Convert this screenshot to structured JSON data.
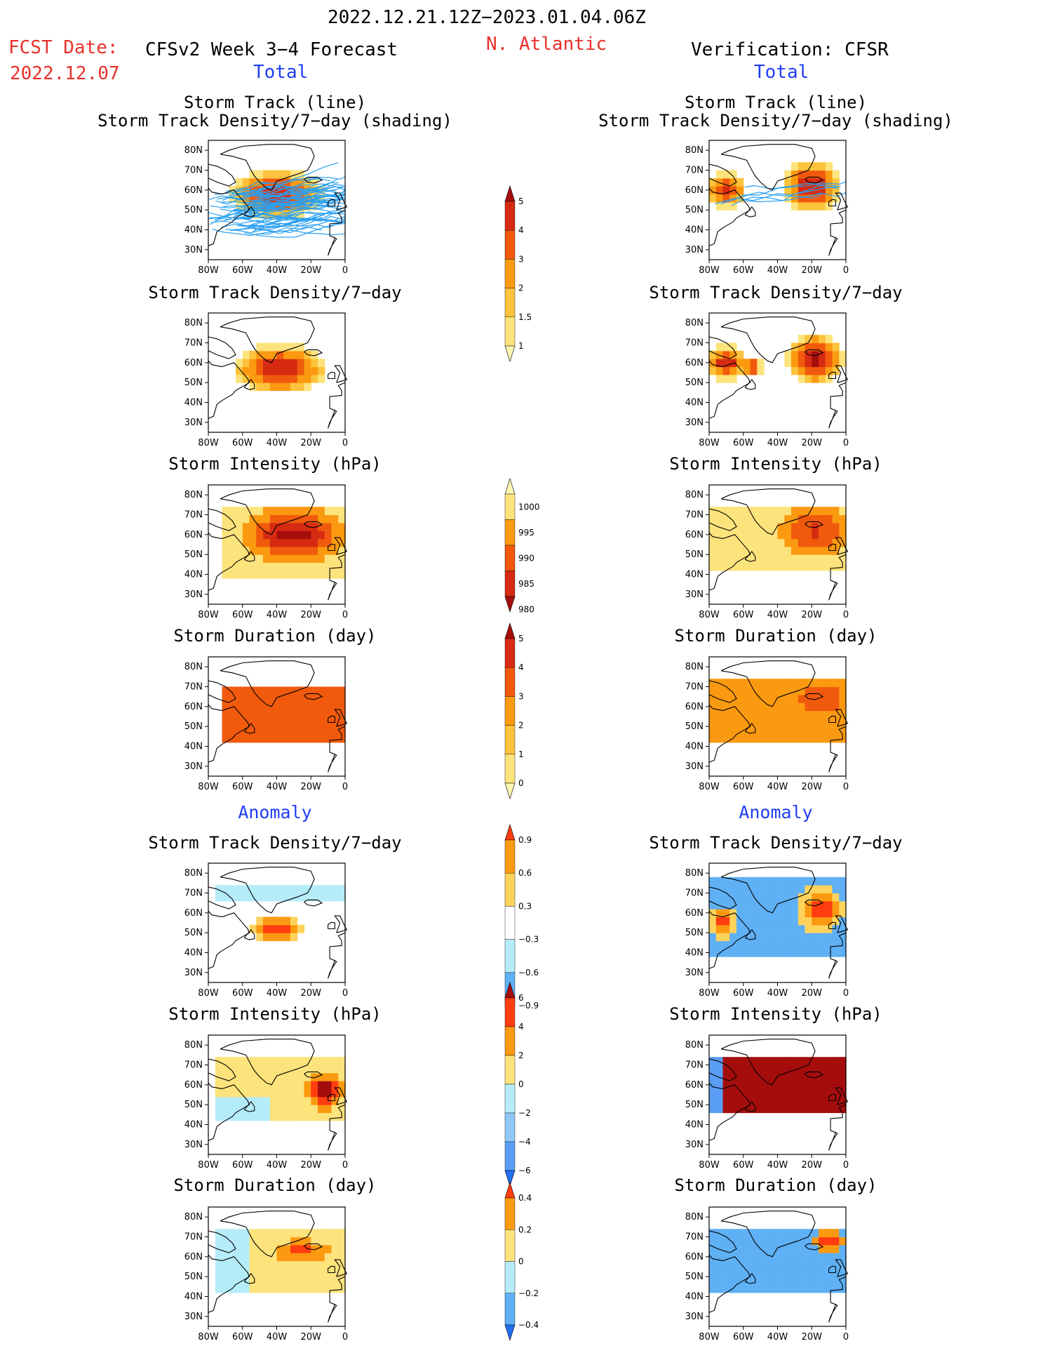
{
  "header": {
    "date_range": "2022.12.21.12Z−2023.01.04.06Z",
    "fcst_label": "FCST Date:",
    "fcst_date": "2022.12.07",
    "forecast_title": "CFSv2 Week 3−4 Forecast",
    "region": "N. Atlantic",
    "verification_title": "Verification: CFSR",
    "total_left": "Total",
    "total_right": "Total",
    "anomaly_left": "Anomaly",
    "anomaly_right": "Anomaly"
  },
  "colors": {
    "text_red": "#e8312b",
    "text_blue": "#1f3df5",
    "track_blue": "#2aa0f0",
    "coast": "#000000"
  },
  "panel_titles": {
    "track_1": "Storm Track (line)",
    "track_2": "Storm Track Density/7−day (shading)",
    "density": "Storm Track Density/7−day",
    "intensity": "Storm Intensity (hPa)",
    "duration": "Storm Duration (day)"
  },
  "axes": {
    "lat_ticks": [
      "80N",
      "70N",
      "60N",
      "50N",
      "40N",
      "30N"
    ],
    "lon_ticks": [
      "80W",
      "60W",
      "40W",
      "20W",
      "0"
    ],
    "lon_range": [
      -80,
      0
    ],
    "lat_range": [
      25,
      85
    ]
  },
  "chart_data": [
    {
      "type": "heatmap",
      "id": "fc-track",
      "title": "Storm Track (line) / Storm Track Density/7−day (shading)",
      "side": "CFSv2 Week 3−4 Forecast",
      "section": "Total",
      "scale": "dens",
      "note": "lines = storm tracks"
    },
    {
      "type": "heatmap",
      "id": "ob-track",
      "title": "Storm Track (line) / Storm Track Density/7−day (shading)",
      "side": "Verification: CFSR",
      "section": "Total",
      "scale": "dens",
      "note": "lines = storm tracks"
    },
    {
      "type": "heatmap",
      "id": "fc-dens",
      "title": "Storm Track Density/7−day",
      "side": "CFSv2 Week 3−4 Forecast",
      "section": "Total",
      "scale": "dens"
    },
    {
      "type": "heatmap",
      "id": "ob-dens",
      "title": "Storm Track Density/7−day",
      "side": "Verification: CFSR",
      "section": "Total",
      "scale": "dens"
    },
    {
      "type": "heatmap",
      "id": "fc-int",
      "title": "Storm Intensity (hPa)",
      "side": "CFSv2 Week 3−4 Forecast",
      "section": "Total",
      "scale": "int"
    },
    {
      "type": "heatmap",
      "id": "ob-int",
      "title": "Storm Intensity (hPa)",
      "side": "Verification: CFSR",
      "section": "Total",
      "scale": "int"
    },
    {
      "type": "heatmap",
      "id": "fc-dur",
      "title": "Storm Duration (day)",
      "side": "CFSv2 Week 3−4 Forecast",
      "section": "Total",
      "scale": "dur"
    },
    {
      "type": "heatmap",
      "id": "ob-dur",
      "title": "Storm Duration (day)",
      "side": "Verification: CFSR",
      "section": "Total",
      "scale": "dur"
    },
    {
      "type": "heatmap",
      "id": "fc-adens",
      "title": "Storm Track Density/7−day",
      "side": "CFSv2 Week 3−4 Forecast",
      "section": "Anomaly",
      "scale": "adens"
    },
    {
      "type": "heatmap",
      "id": "ob-adens",
      "title": "Storm Track Density/7−day",
      "side": "Verification: CFSR",
      "section": "Anomaly",
      "scale": "adens"
    },
    {
      "type": "heatmap",
      "id": "fc-aint",
      "title": "Storm Intensity (hPa)",
      "side": "CFSv2 Week 3−4 Forecast",
      "section": "Anomaly",
      "scale": "aint"
    },
    {
      "type": "heatmap",
      "id": "ob-aint",
      "title": "Storm Intensity (hPa)",
      "side": "Verification: CFSR",
      "section": "Anomaly",
      "scale": "aint"
    },
    {
      "type": "heatmap",
      "id": "fc-adur",
      "title": "Storm Duration (day)",
      "side": "CFSv2 Week 3−4 Forecast",
      "section": "Anomaly",
      "scale": "adur"
    },
    {
      "type": "heatmap",
      "id": "ob-adur",
      "title": "Storm Duration (day)",
      "side": "Verification: CFSR",
      "section": "Anomaly",
      "scale": "adur"
    }
  ],
  "colorbars": {
    "dens": {
      "labels": [
        "5",
        "4",
        "3",
        "2",
        "1.5",
        "1"
      ],
      "colors": [
        "#a50d0d",
        "#d62b12",
        "#f15a0d",
        "#fb9a10",
        "#fdc33c",
        "#fde37c",
        "#fff6b4"
      ]
    },
    "int": {
      "labels": [
        "1000",
        "995",
        "990",
        "985",
        "980"
      ],
      "colors": [
        "#fff6b4",
        "#fde37c",
        "#fb9a10",
        "#f15a0d",
        "#d62b12",
        "#a50d0d"
      ]
    },
    "dur": {
      "labels": [
        "5",
        "4",
        "3",
        "2",
        "1",
        "0"
      ],
      "colors": [
        "#a50d0d",
        "#d62b12",
        "#f15a0d",
        "#fb9a10",
        "#fdc33c",
        "#fde37c",
        "#fff6b4"
      ]
    },
    "adens": {
      "labels": [
        "0.9",
        "0.6",
        "0.3",
        "−0.3",
        "−0.6",
        "−0.9"
      ],
      "colors": [
        "#ff3d10",
        "#fb9a10",
        "#fdd35c",
        "#ffffff",
        "#b5ecfa",
        "#5fb0f5",
        "#1f6ff0"
      ]
    },
    "aint": {
      "labels": [
        "6",
        "4",
        "2",
        "0",
        "−2",
        "−4",
        "−6"
      ],
      "colors": [
        "#a50d0d",
        "#ff3d10",
        "#fb9a10",
        "#fde37c",
        "#b5ecfa",
        "#8fc8f8",
        "#5a9ef5",
        "#1f6ff0"
      ]
    },
    "adur": {
      "labels": [
        "0.4",
        "0.2",
        "0",
        "−0.2",
        "−0.4"
      ],
      "colors": [
        "#ff3d10",
        "#fb9a10",
        "#fde37c",
        "#b5ecfa",
        "#5fb0f5",
        "#1f6ff0"
      ]
    }
  }
}
